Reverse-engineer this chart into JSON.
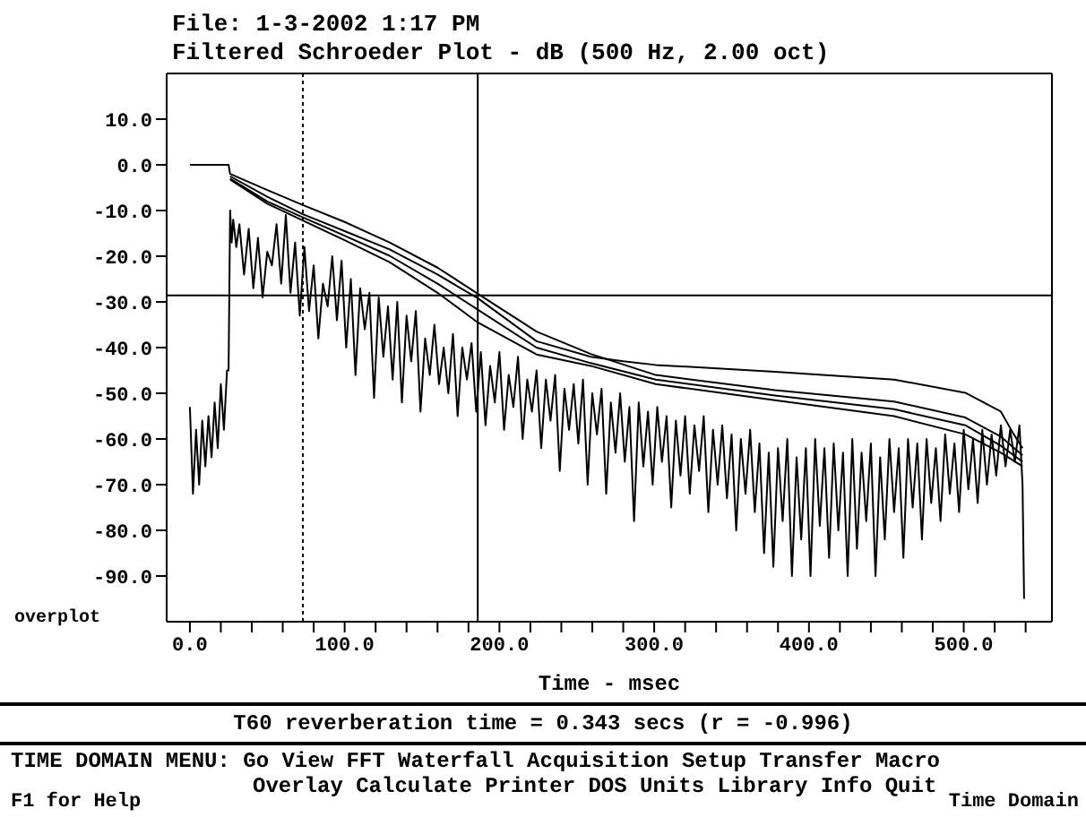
{
  "chart_data": {
    "type": "line",
    "title": "File: 1-3-2002 1:17 PM",
    "subtitle": "Filtered Schroeder Plot - dB (500 Hz, 2.00 oct)",
    "xlabel": "Time - msec",
    "xlim": [
      -15,
      557
    ],
    "ylim": [
      -100,
      20
    ],
    "xticks": [
      {
        "value": 0,
        "label": "0.0"
      },
      {
        "value": 20,
        "label": null
      },
      {
        "value": 40,
        "label": null
      },
      {
        "value": 60,
        "label": null
      },
      {
        "value": 80,
        "label": null
      },
      {
        "value": 100,
        "label": "100.0"
      },
      {
        "value": 120,
        "label": null
      },
      {
        "value": 140,
        "label": null
      },
      {
        "value": 160,
        "label": null
      },
      {
        "value": 180,
        "label": null
      },
      {
        "value": 200,
        "label": "200.0"
      },
      {
        "value": 220,
        "label": null
      },
      {
        "value": 240,
        "label": null
      },
      {
        "value": 260,
        "label": null
      },
      {
        "value": 280,
        "label": null
      },
      {
        "value": 300,
        "label": "300.0"
      },
      {
        "value": 320,
        "label": null
      },
      {
        "value": 340,
        "label": null
      },
      {
        "value": 360,
        "label": null
      },
      {
        "value": 380,
        "label": null
      },
      {
        "value": 400,
        "label": "400.0"
      },
      {
        "value": 420,
        "label": null
      },
      {
        "value": 440,
        "label": null
      },
      {
        "value": 460,
        "label": null
      },
      {
        "value": 480,
        "label": null
      },
      {
        "value": 500,
        "label": "500.0"
      },
      {
        "value": 520,
        "label": null
      },
      {
        "value": 540,
        "label": null
      }
    ],
    "yticks": [
      {
        "value": 10,
        "label": "10.0"
      },
      {
        "value": 0,
        "label": "0.0"
      },
      {
        "value": -10,
        "label": "-10.0"
      },
      {
        "value": -20,
        "label": "-20.0"
      },
      {
        "value": -30,
        "label": "-30.0"
      },
      {
        "value": -40,
        "label": "-40.0"
      },
      {
        "value": -50,
        "label": "-50.0"
      },
      {
        "value": -60,
        "label": "-60.0"
      },
      {
        "value": -70,
        "label": "-70.0"
      },
      {
        "value": -80,
        "label": "-80.0"
      },
      {
        "value": -90,
        "label": "-90.0"
      }
    ],
    "marker": "none",
    "line_style": "solid",
    "grid": false,
    "legend": false,
    "ref_lines": [
      {
        "axis": "x",
        "value": 73,
        "label": null,
        "line_style": "dotted",
        "color": "#000000"
      },
      {
        "axis": "x",
        "value": 186,
        "label": null,
        "line_style": "solid",
        "color": "#000000"
      },
      {
        "axis": "y",
        "value": -28.6,
        "label": null,
        "line_style": "solid",
        "color": "#000000"
      }
    ],
    "annotations": [
      "overplot",
      "T60 reverberation time = 0.343 secs (r = -0.996)",
      "TIME DOMAIN MENU: Go View FFT Waterfall Acquisition Setup Transfer Macro",
      "Overlay Calculate Printer DOS Units Library Info Quit",
      "F1 for Help",
      "Time Domain"
    ],
    "series": [
      {
        "color": "#000000",
        "x": [
          0,
          2,
          4,
          6,
          8,
          10,
          12,
          14,
          16,
          18,
          20,
          22,
          24,
          25,
          26,
          27,
          28,
          30,
          32,
          35,
          38,
          41,
          44,
          47,
          50,
          53,
          56,
          59,
          62,
          65,
          68,
          71,
          74,
          77,
          80,
          83,
          86,
          89,
          92,
          95,
          98,
          101,
          104,
          107,
          110,
          113,
          116,
          119,
          122,
          125,
          128,
          131,
          134,
          137,
          140,
          143,
          146,
          149,
          152,
          155,
          158,
          161,
          164,
          167,
          170,
          173,
          176,
          179,
          182,
          185,
          188,
          191,
          194,
          197,
          200,
          203,
          206,
          209,
          212,
          215,
          218,
          221,
          224,
          227,
          230,
          233,
          236,
          239,
          242,
          245,
          248,
          251,
          254,
          257,
          260,
          263,
          266,
          269,
          272,
          275,
          278,
          281,
          284,
          287,
          290,
          293,
          296,
          299,
          302,
          305,
          308,
          311,
          314,
          317,
          320,
          323,
          326,
          329,
          332,
          335,
          338,
          341,
          344,
          347,
          350,
          353,
          356,
          359,
          362,
          365,
          368,
          371,
          374,
          377,
          380,
          383,
          386,
          389,
          392,
          395,
          398,
          401,
          404,
          407,
          410,
          413,
          416,
          419,
          422,
          425,
          428,
          431,
          434,
          437,
          440,
          443,
          446,
          449,
          452,
          455,
          458,
          461,
          464,
          467,
          470,
          473,
          476,
          479,
          482,
          485,
          488,
          491,
          494,
          497,
          500,
          503,
          506,
          509,
          512,
          515,
          518,
          521,
          524,
          527,
          530,
          533,
          536,
          538,
          539
        ],
        "values": [
          -53,
          -72,
          -58,
          -70,
          -56,
          -66,
          -55,
          -64,
          -52,
          -62,
          -48,
          -58,
          -45,
          -45,
          -10,
          -17,
          -12,
          -18,
          -13,
          -24,
          -14,
          -27,
          -16,
          -29,
          -19,
          -22,
          -13,
          -26,
          -11,
          -28,
          -17,
          -33,
          -18,
          -32,
          -22,
          -38,
          -26,
          -31,
          -20,
          -34,
          -21,
          -40,
          -25,
          -46,
          -27,
          -36,
          -28,
          -51,
          -29,
          -42,
          -31,
          -47,
          -30,
          -52,
          -33,
          -43,
          -32,
          -54,
          -38,
          -46,
          -35,
          -48,
          -40,
          -50,
          -37,
          -55,
          -40,
          -47,
          -39,
          -54,
          -41,
          -57,
          -44,
          -52,
          -41,
          -58,
          -46,
          -53,
          -42,
          -60,
          -47,
          -54,
          -45,
          -62,
          -47,
          -56,
          -46,
          -67,
          -49,
          -58,
          -48,
          -61,
          -47,
          -70,
          -50,
          -59,
          -49,
          -72,
          -52,
          -63,
          -50,
          -65,
          -53,
          -78,
          -52,
          -66,
          -54,
          -70,
          -53,
          -65,
          -55,
          -75,
          -56,
          -68,
          -55,
          -72,
          -57,
          -67,
          -55,
          -76,
          -58,
          -70,
          -57,
          -73,
          -59,
          -80,
          -60,
          -72,
          -58,
          -76,
          -61,
          -85,
          -63,
          -88,
          -62,
          -78,
          -60,
          -90,
          -64,
          -82,
          -62,
          -90,
          -60,
          -79,
          -62,
          -86,
          -61,
          -80,
          -63,
          -90,
          -60,
          -84,
          -63,
          -78,
          -61,
          -90,
          -64,
          -82,
          -60,
          -76,
          -62,
          -86,
          -60,
          -75,
          -61,
          -82,
          -60,
          -74,
          -62,
          -78,
          -59,
          -72,
          -61,
          -76,
          -58,
          -71,
          -60,
          -74,
          -58,
          -70,
          -59,
          -68,
          -57,
          -66,
          -58,
          -65,
          -57,
          -70,
          -95
        ]
      },
      {
        "color": "#000000",
        "x": [
          0,
          25,
          26,
          50,
          73,
          100,
          129,
          160,
          186,
          224,
          259,
          301,
          378,
          455,
          501,
          524,
          538
        ],
        "values": [
          0,
          0,
          -2,
          -5.5,
          -8.8,
          -12.5,
          -17,
          -22.5,
          -28.2,
          -36.5,
          -41.4,
          -46,
          -49.3,
          -51.8,
          -55.3,
          -59.5,
          -63.6
        ]
      },
      {
        "color": "#000000",
        "x": [
          26,
          50,
          73,
          100,
          129,
          160,
          186,
          224,
          259,
          280,
          301,
          378,
          455,
          501,
          524,
          532,
          538
        ],
        "values": [
          -2.5,
          -7,
          -10.8,
          -14.5,
          -18.5,
          -24,
          -29.2,
          -38.6,
          -42,
          -43,
          -43.8,
          -45.3,
          -47,
          -49.9,
          -54,
          -58.8,
          -62
        ]
      },
      {
        "color": "#000000",
        "x": [
          26,
          50,
          73,
          100,
          129,
          160,
          186,
          224,
          259,
          301,
          378,
          455,
          501,
          524,
          538
        ],
        "values": [
          -3,
          -8,
          -11.5,
          -15.5,
          -19.9,
          -26,
          -31.7,
          -40,
          -43.4,
          -47,
          -50.5,
          -53.5,
          -57,
          -61.5,
          -65
        ]
      },
      {
        "color": "#000000",
        "x": [
          26,
          50,
          73,
          100,
          129,
          160,
          186,
          224,
          259,
          301,
          378,
          455,
          501,
          524,
          538
        ],
        "values": [
          -3.2,
          -8.5,
          -12.2,
          -16.5,
          -21.3,
          -28,
          -34.5,
          -41.5,
          -44,
          -48,
          -51.5,
          -55,
          -59,
          -63,
          -66
        ]
      }
    ]
  }
}
